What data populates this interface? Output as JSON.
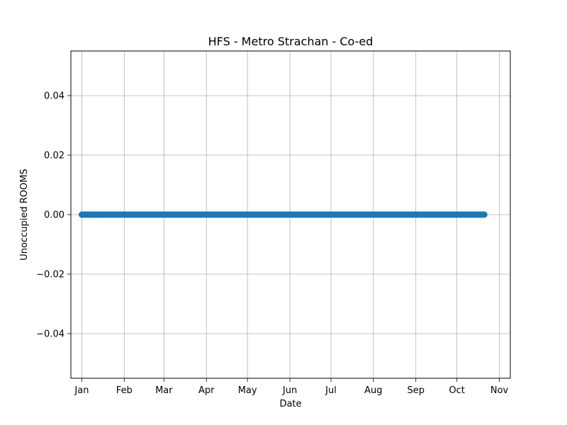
{
  "chart_data": {
    "type": "scatter",
    "title": "HFS - Metro Strachan - Co-ed",
    "xlabel": "Date",
    "ylabel": "Unoccupied ROOMS",
    "x_range": [
      "2023-12-24",
      "2024-11-09"
    ],
    "ylim": [
      -0.055,
      0.055
    ],
    "y_ticks": [
      -0.04,
      -0.02,
      0.0,
      0.02,
      0.04
    ],
    "y_tick_labels": [
      "−0.04",
      "−0.02",
      "0.00",
      "0.02",
      "0.04"
    ],
    "x_ticks": [
      "2024-01-01",
      "2024-02-01",
      "2024-03-01",
      "2024-04-01",
      "2024-05-01",
      "2024-06-01",
      "2024-07-01",
      "2024-08-01",
      "2024-09-01",
      "2024-10-01",
      "2024-11-01"
    ],
    "x_tick_labels": [
      "Jan",
      "Feb",
      "Mar",
      "Apr",
      "May",
      "Jun",
      "Jul",
      "Aug",
      "Sep",
      "Oct",
      "Nov"
    ],
    "grid": true,
    "series": [
      {
        "color": "#1f77b4",
        "x_start": "2024-01-01",
        "x_end": "2024-10-21",
        "x_step_days": 1,
        "y_constant": 0
      }
    ]
  }
}
